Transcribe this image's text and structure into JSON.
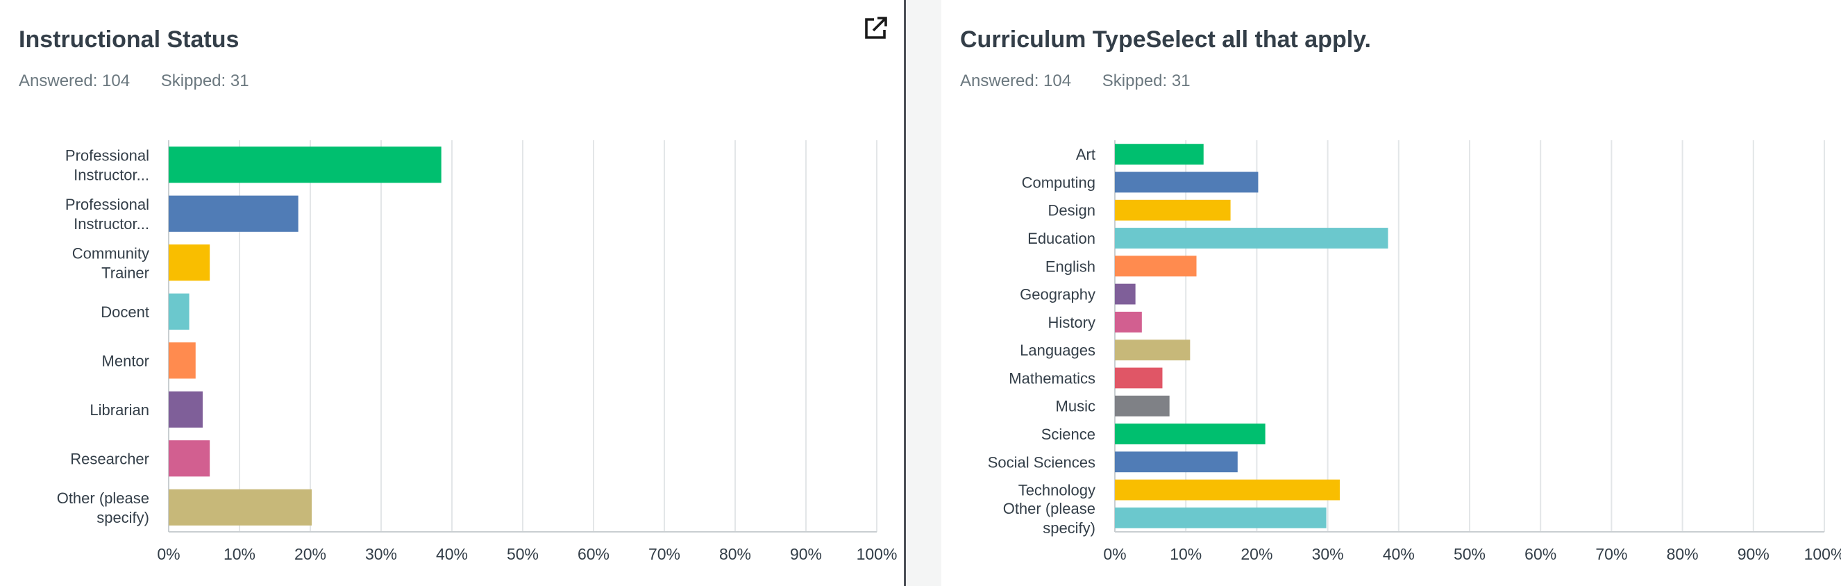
{
  "panels": [
    {
      "title": "Instructional Status",
      "answered_label": "Answered: 104",
      "skipped_label": "Skipped: 31"
    },
    {
      "title": "Curriculum TypeSelect all that apply.",
      "answered_label": "Answered: 104",
      "skipped_label": "Skipped: 31"
    }
  ],
  "export_icon": "external-link-icon",
  "chart_data": [
    {
      "type": "bar",
      "orientation": "horizontal",
      "title": "Instructional Status",
      "categories": [
        [
          "Professional",
          "Instructor..."
        ],
        [
          "Professional",
          "Instructor..."
        ],
        [
          "Community",
          "Trainer"
        ],
        [
          "Docent"
        ],
        [
          "Mentor"
        ],
        [
          "Librarian"
        ],
        [
          "Researcher"
        ],
        [
          "Other (please",
          "specify)"
        ]
      ],
      "values": [
        38.5,
        18.3,
        5.8,
        2.9,
        3.8,
        4.8,
        5.8,
        20.2
      ],
      "colors": [
        "#00bf6f",
        "#507cb6",
        "#f9be00",
        "#6bc8cd",
        "#ff8b4f",
        "#7f5f99",
        "#d25f90",
        "#c7b879"
      ],
      "xlim": [
        0,
        100
      ],
      "xticks": [
        "0%",
        "10%",
        "20%",
        "30%",
        "40%",
        "50%",
        "60%",
        "70%",
        "80%",
        "90%",
        "100%"
      ],
      "grid": true
    },
    {
      "type": "bar",
      "orientation": "horizontal",
      "title": "Curriculum TypeSelect all that apply.",
      "categories": [
        [
          "Art"
        ],
        [
          "Computing"
        ],
        [
          "Design"
        ],
        [
          "Education"
        ],
        [
          "English"
        ],
        [
          "Geography"
        ],
        [
          "History"
        ],
        [
          "Languages"
        ],
        [
          "Mathematics"
        ],
        [
          "Music"
        ],
        [
          "Science"
        ],
        [
          "Social Sciences"
        ],
        [
          "Technology"
        ],
        [
          "Other (please",
          "specify)"
        ]
      ],
      "values": [
        12.5,
        20.2,
        16.3,
        38.5,
        11.5,
        2.9,
        3.8,
        10.6,
        6.7,
        7.7,
        21.2,
        17.3,
        31.7,
        29.8
      ],
      "colors": [
        "#00bf6f",
        "#507cb6",
        "#f9be00",
        "#6bc8cd",
        "#ff8b4f",
        "#7f5f99",
        "#d25f90",
        "#c7b879",
        "#e05666",
        "#7f8186",
        "#00bf6f",
        "#507cb6",
        "#f9be00",
        "#6bc8cd"
      ],
      "xlim": [
        0,
        100
      ],
      "xticks": [
        "0%",
        "10%",
        "20%",
        "30%",
        "40%",
        "50%",
        "60%",
        "70%",
        "80%",
        "90%",
        "100%"
      ],
      "grid": true
    }
  ]
}
